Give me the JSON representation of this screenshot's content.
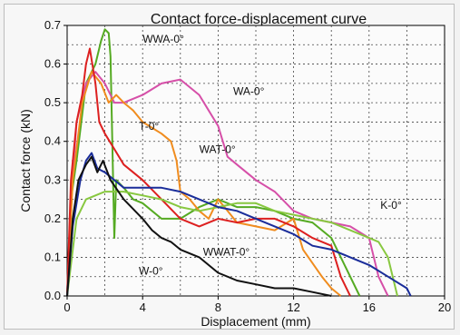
{
  "chart_data": {
    "type": "line",
    "title": "Contact force-displacement curve",
    "xlabel": "Displacement (mm)",
    "ylabel": "Contact force (kN)",
    "xlim": [
      0,
      20
    ],
    "ylim": [
      0,
      0.7
    ],
    "xticks": [
      0,
      4,
      8,
      12,
      16,
      20
    ],
    "yticks": [
      0.0,
      0.1,
      0.2,
      0.3,
      0.4,
      0.5,
      0.6,
      0.7
    ],
    "grid": "dotted, x every 2 mm, y every 0.05 kN",
    "series": [
      {
        "name": "WWA-0°",
        "color": "#55aa22",
        "x": [
          0,
          0.2,
          0.5,
          1.0,
          1.5,
          1.8,
          2.0,
          2.2,
          2.3,
          2.5,
          2.6,
          3.0,
          3.5,
          4.0,
          5.0,
          6.0,
          7.0,
          8.0,
          9.0,
          10.0,
          11.0,
          12.0,
          13.0,
          14.0,
          15.0,
          15.5
        ],
        "y": [
          0,
          0.25,
          0.35,
          0.55,
          0.6,
          0.66,
          0.69,
          0.68,
          0.62,
          0.15,
          0.3,
          0.28,
          0.25,
          0.24,
          0.2,
          0.2,
          0.23,
          0.25,
          0.23,
          0.23,
          0.22,
          0.2,
          0.19,
          0.15,
          0.05,
          0.0
        ]
      },
      {
        "name": "WA-0°",
        "color": "#d64fa8",
        "x": [
          0,
          0.2,
          0.5,
          1.0,
          1.5,
          2.0,
          2.5,
          3.0,
          4.0,
          5.0,
          6.0,
          7.0,
          7.5,
          8.0,
          8.5,
          9.0,
          10.0,
          11.0,
          12.0,
          13.0,
          14.0,
          15.0,
          16.0,
          16.5,
          17.0
        ],
        "y": [
          0,
          0.25,
          0.45,
          0.55,
          0.58,
          0.55,
          0.5,
          0.5,
          0.52,
          0.55,
          0.56,
          0.52,
          0.48,
          0.44,
          0.36,
          0.34,
          0.3,
          0.27,
          0.22,
          0.2,
          0.19,
          0.18,
          0.15,
          0.05,
          0.0
        ]
      },
      {
        "name": "WAT-0°",
        "color": "#f08c1e",
        "x": [
          0,
          0.3,
          0.8,
          1.3,
          1.8,
          2.2,
          2.6,
          3.0,
          3.5,
          4.0,
          5.0,
          5.5,
          5.8,
          6.0,
          6.5,
          7.0,
          7.5,
          8.0,
          8.5,
          9.0,
          10.0,
          11.0,
          12.0,
          12.5,
          13.5,
          14.0,
          14.5
        ],
        "y": [
          0,
          0.3,
          0.5,
          0.58,
          0.55,
          0.5,
          0.52,
          0.5,
          0.48,
          0.45,
          0.42,
          0.4,
          0.35,
          0.27,
          0.25,
          0.22,
          0.2,
          0.25,
          0.22,
          0.19,
          0.18,
          0.17,
          0.2,
          0.12,
          0.05,
          0.02,
          0.0
        ]
      },
      {
        "name": "T-0°",
        "color": "#dd2020",
        "x": [
          0,
          0.2,
          0.5,
          0.8,
          1.0,
          1.2,
          1.5,
          1.7,
          2.0,
          2.5,
          3.0,
          4.0,
          5.0,
          6.0,
          7.0,
          8.0,
          9.0,
          10.0,
          11.0,
          12.0,
          13.0,
          14.0,
          14.5,
          15.0
        ],
        "y": [
          0,
          0.3,
          0.45,
          0.52,
          0.6,
          0.64,
          0.55,
          0.45,
          0.42,
          0.38,
          0.34,
          0.3,
          0.25,
          0.2,
          0.18,
          0.2,
          0.19,
          0.2,
          0.2,
          0.18,
          0.15,
          0.13,
          0.05,
          0.0
        ]
      },
      {
        "name": "K-0°",
        "color": "#88c840",
        "x": [
          0,
          0.5,
          1.0,
          2.0,
          3.0,
          4.0,
          5.0,
          6.0,
          7.0,
          8.0,
          9.0,
          10.0,
          11.0,
          12.0,
          13.0,
          14.0,
          15.0,
          16.0,
          16.5,
          17.0,
          17.5
        ],
        "y": [
          0,
          0.2,
          0.25,
          0.27,
          0.27,
          0.26,
          0.25,
          0.23,
          0.22,
          0.23,
          0.24,
          0.24,
          0.22,
          0.21,
          0.2,
          0.19,
          0.17,
          0.15,
          0.14,
          0.1,
          0.0
        ]
      },
      {
        "name": "WWAT-0°",
        "color": "#1a2d9a",
        "x": [
          0,
          0.3,
          0.7,
          1.0,
          1.3,
          1.6,
          2.0,
          2.5,
          3.0,
          4.0,
          5.0,
          6.0,
          7.0,
          8.0,
          9.0,
          10.0,
          11.0,
          12.0,
          13.0,
          14.0,
          15.0,
          16.0,
          17.0,
          18.0,
          18.2
        ],
        "y": [
          0,
          0.18,
          0.3,
          0.35,
          0.37,
          0.33,
          0.32,
          0.3,
          0.28,
          0.28,
          0.28,
          0.27,
          0.25,
          0.23,
          0.22,
          0.2,
          0.18,
          0.16,
          0.13,
          0.12,
          0.1,
          0.08,
          0.05,
          0.02,
          0.0
        ]
      },
      {
        "name": "W-0°",
        "color": "#111111",
        "x": [
          0,
          0.3,
          0.6,
          1.0,
          1.3,
          1.6,
          1.9,
          2.3,
          3.0,
          4.0,
          4.5,
          5.0,
          5.5,
          6.0,
          7.0,
          8.0,
          9.0,
          10.0,
          11.0,
          12.0,
          13.0,
          14.0
        ],
        "y": [
          0,
          0.2,
          0.3,
          0.34,
          0.36,
          0.32,
          0.35,
          0.3,
          0.25,
          0.2,
          0.17,
          0.15,
          0.14,
          0.12,
          0.1,
          0.06,
          0.04,
          0.03,
          0.02,
          0.02,
          0.01,
          0.0
        ]
      }
    ],
    "annotations": [
      {
        "label": "WWA-0°",
        "x": 2.3,
        "y": 0.66,
        "tx": 4.0,
        "ty": 0.655
      },
      {
        "label": "WA-0°",
        "x": 8.8,
        "y": 0.52,
        "tx": 8.8,
        "ty": 0.52
      },
      {
        "label": "T-0°",
        "x": 2.3,
        "y": 0.43,
        "tx": 3.8,
        "ty": 0.43
      },
      {
        "label": "WAT-0°",
        "x": 6.0,
        "y": 0.4,
        "tx": 7.0,
        "ty": 0.37
      },
      {
        "label": "K-0°",
        "x": 16.2,
        "y": 0.14,
        "tx": 16.6,
        "ty": 0.225
      },
      {
        "label": "WWAT-0°",
        "x": 10.3,
        "y": 0.08,
        "tx": 7.2,
        "ty": 0.105
      },
      {
        "label": "W-0°",
        "x": 6.3,
        "y": 0.065,
        "tx": 3.8,
        "ty": 0.055
      }
    ]
  }
}
